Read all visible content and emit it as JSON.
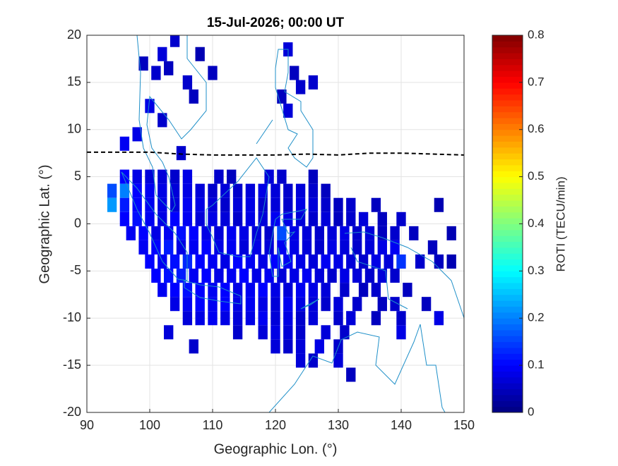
{
  "chart_data": {
    "type": "scatter",
    "title": "15-Jul-2026; 00:00 UT",
    "x_label": "Geographic Lon. (°)",
    "y_label": "Geographic Lat. (°)",
    "colorbar_label": "ROTI (TECU/min)",
    "colormap": "jet",
    "clim": [
      0,
      0.8
    ],
    "cticks": [
      0,
      0.1,
      0.2,
      0.3,
      0.4,
      0.5,
      0.6,
      0.7,
      0.8
    ],
    "xlim": [
      90,
      150
    ],
    "ylim": [
      -20,
      20
    ],
    "xticks": [
      90,
      100,
      110,
      120,
      130,
      140,
      150
    ],
    "yticks": [
      -20,
      -15,
      -10,
      -5,
      0,
      5,
      10,
      15,
      20
    ],
    "grid": true,
    "series": [
      {
        "x": [
          104,
          99,
          102,
          108,
          110,
          101,
          103,
          106,
          107,
          100,
          102,
          122,
          123,
          126,
          121,
          124,
          122,
          98,
          105,
          96,
          96,
          98,
          100,
          102,
          104,
          106,
          111,
          113,
          119,
          121,
          126,
          94,
          96,
          98,
          100,
          102,
          104,
          106,
          108,
          110,
          112,
          114,
          116,
          118,
          120,
          122,
          124,
          126,
          128,
          94,
          96,
          98,
          100,
          102,
          104,
          106,
          108,
          110,
          112,
          114,
          116,
          118,
          120,
          122,
          124,
          126,
          128,
          130,
          132,
          136,
          146,
          96,
          98,
          100,
          102,
          104,
          106,
          108,
          110,
          112,
          114,
          116,
          118,
          120,
          122,
          124,
          126,
          128,
          130,
          132,
          134,
          137,
          140,
          97,
          99,
          101,
          103,
          105,
          107,
          109,
          111,
          113,
          115,
          117,
          119,
          121,
          123,
          125,
          127,
          129,
          131,
          133,
          135,
          137,
          139,
          142,
          148,
          99,
          101,
          103,
          105,
          107,
          109,
          111,
          113,
          115,
          117,
          119,
          121,
          123,
          125,
          127,
          129,
          131,
          133,
          135,
          137,
          139,
          145,
          100,
          102,
          104,
          106,
          108,
          110,
          112,
          114,
          116,
          118,
          120,
          122,
          124,
          126,
          128,
          130,
          132,
          134,
          136,
          138,
          140,
          143,
          146,
          148,
          101,
          103,
          105,
          107,
          109,
          111,
          113,
          115,
          117,
          119,
          121,
          123,
          125,
          127,
          129,
          131,
          133,
          135,
          137,
          139,
          102,
          104,
          106,
          108,
          110,
          112,
          114,
          116,
          118,
          120,
          122,
          124,
          126,
          128,
          131,
          134,
          136,
          141,
          104,
          106,
          108,
          110,
          112,
          114,
          116,
          118,
          120,
          122,
          124,
          126,
          128,
          130,
          133,
          137,
          139,
          144,
          106,
          108,
          110,
          112,
          114,
          116,
          118,
          120,
          122,
          124,
          126,
          130,
          132,
          136,
          140,
          146,
          103,
          114,
          118,
          120,
          122,
          124,
          128,
          131,
          140,
          107,
          120,
          122,
          124,
          127,
          130,
          124,
          126,
          130,
          132
        ],
        "y": [
          19.5,
          17,
          18,
          18,
          16,
          16,
          16.5,
          15,
          13.5,
          12.5,
          11,
          18.5,
          16,
          15,
          13.5,
          14.5,
          12,
          9.5,
          7.5,
          8.5,
          5,
          5,
          5,
          5,
          5,
          5,
          5,
          5,
          5,
          5,
          5,
          3.5,
          3.5,
          3.5,
          3.5,
          3.5,
          3.5,
          3.5,
          3.5,
          3.5,
          3.5,
          3.5,
          3.5,
          3.5,
          3.5,
          3.5,
          3.5,
          3.5,
          3.5,
          2,
          2,
          2,
          2,
          2,
          2,
          2,
          2,
          2,
          2,
          2,
          2,
          2,
          2,
          2,
          2,
          2,
          2,
          2,
          2,
          2,
          2,
          0.5,
          0.5,
          0.5,
          0.5,
          0.5,
          0.5,
          0.5,
          0.5,
          0.5,
          0.5,
          0.5,
          0.5,
          0.5,
          0.5,
          0.5,
          0.5,
          0.5,
          0.5,
          0.5,
          0.5,
          0.5,
          0.5,
          -1,
          -1,
          -1,
          -1,
          -1,
          -1,
          -1,
          -1,
          -1,
          -1,
          -1,
          -1,
          -1,
          -1,
          -1,
          -1,
          -1,
          -1,
          -1,
          -1,
          -1,
          -1,
          -1,
          -1,
          -2.5,
          -2.5,
          -2.5,
          -2.5,
          -2.5,
          -2.5,
          -2.5,
          -2.5,
          -2.5,
          -2.5,
          -2.5,
          -2.5,
          -2.5,
          -2.5,
          -2.5,
          -2.5,
          -2.5,
          -2.5,
          -2.5,
          -2.5,
          -2.5,
          -2.5,
          -4,
          -4,
          -4,
          -4,
          -4,
          -4,
          -4,
          -4,
          -4,
          -4,
          -4,
          -4,
          -4,
          -4,
          -4,
          -4,
          -4,
          -4,
          -4,
          -4,
          -4,
          -4,
          -4,
          -4,
          -5.5,
          -5.5,
          -5.5,
          -5.5,
          -5.5,
          -5.5,
          -5.5,
          -5.5,
          -5.5,
          -5.5,
          -5.5,
          -5.5,
          -5.5,
          -5.5,
          -5.5,
          -5.5,
          -5.5,
          -5.5,
          -5.5,
          -5.5,
          -7,
          -7,
          -7,
          -7,
          -7,
          -7,
          -7,
          -7,
          -7,
          -7,
          -7,
          -7,
          -7,
          -7,
          -7,
          -7,
          -7,
          -7,
          -8.5,
          -8.5,
          -8.5,
          -8.5,
          -8.5,
          -8.5,
          -8.5,
          -8.5,
          -8.5,
          -8.5,
          -8.5,
          -8.5,
          -8.5,
          -8.5,
          -8.5,
          -8.5,
          -8.5,
          -8.5,
          -10,
          -10,
          -10,
          -10,
          -10,
          -10,
          -10,
          -10,
          -10,
          -10,
          -10,
          -10,
          -10,
          -10,
          -10,
          -10,
          -11.5,
          -11.5,
          -11.5,
          -11.5,
          -11.5,
          -11.5,
          -11.5,
          -11.5,
          -11.5,
          -13,
          -13,
          -13,
          -13,
          -13,
          -13,
          -14.5,
          -14.5,
          -14.5,
          -16
        ],
        "values": [
          0.06,
          0.05,
          0.07,
          0.04,
          0.05,
          0.06,
          0.05,
          0.06,
          0.05,
          0.08,
          0.06,
          0.07,
          0.05,
          0.06,
          0.05,
          0.06,
          0.07,
          0.08,
          0.06,
          0.09,
          0.1,
          0.08,
          0.07,
          0.07,
          0.06,
          0.08,
          0.06,
          0.05,
          0.07,
          0.06,
          0.05,
          0.16,
          0.2,
          0.1,
          0.09,
          0.08,
          0.07,
          0.08,
          0.07,
          0.06,
          0.07,
          0.06,
          0.07,
          0.08,
          0.07,
          0.06,
          0.07,
          0.06,
          0.05,
          0.22,
          0.12,
          0.1,
          0.09,
          0.08,
          0.07,
          0.09,
          0.08,
          0.07,
          0.06,
          0.07,
          0.08,
          0.06,
          0.07,
          0.06,
          0.08,
          0.07,
          0.06,
          0.05,
          0.06,
          0.05,
          0.04,
          0.1,
          0.11,
          0.09,
          0.08,
          0.1,
          0.09,
          0.07,
          0.08,
          0.07,
          0.06,
          0.08,
          0.07,
          0.09,
          0.08,
          0.07,
          0.06,
          0.07,
          0.05,
          0.06,
          0.07,
          0.05,
          0.06,
          0.09,
          0.1,
          0.08,
          0.09,
          0.11,
          0.1,
          0.08,
          0.07,
          0.09,
          0.08,
          0.07,
          0.06,
          0.16,
          0.08,
          0.07,
          0.06,
          0.07,
          0.08,
          0.06,
          0.07,
          0.05,
          0.06,
          0.05,
          0.04,
          0.09,
          0.1,
          0.12,
          0.08,
          0.09,
          0.1,
          0.08,
          0.09,
          0.07,
          0.08,
          0.07,
          0.09,
          0.08,
          0.07,
          0.06,
          0.08,
          0.07,
          0.06,
          0.07,
          0.08,
          0.09,
          0.05,
          0.1,
          0.09,
          0.11,
          0.13,
          0.1,
          0.09,
          0.08,
          0.1,
          0.09,
          0.08,
          0.1,
          0.09,
          0.08,
          0.07,
          0.09,
          0.08,
          0.07,
          0.06,
          0.08,
          0.07,
          0.14,
          0.06,
          0.05,
          0.04,
          0.1,
          0.11,
          0.12,
          0.09,
          0.1,
          0.08,
          0.09,
          0.1,
          0.08,
          0.09,
          0.07,
          0.08,
          0.09,
          0.07,
          0.06,
          0.08,
          0.07,
          0.06,
          0.07,
          0.06,
          0.09,
          0.1,
          0.11,
          0.1,
          0.09,
          0.1,
          0.08,
          0.09,
          0.1,
          0.08,
          0.07,
          0.09,
          0.08,
          0.07,
          0.06,
          0.05,
          0.06,
          0.05,
          0.08,
          0.09,
          0.1,
          0.09,
          0.1,
          0.08,
          0.09,
          0.08,
          0.07,
          0.09,
          0.08,
          0.07,
          0.06,
          0.07,
          0.06,
          0.05,
          0.06,
          0.05,
          0.07,
          0.08,
          0.09,
          0.08,
          0.07,
          0.08,
          0.09,
          0.07,
          0.08,
          0.06,
          0.07,
          0.06,
          0.07,
          0.05,
          0.06,
          0.08,
          0.07,
          0.06,
          0.07,
          0.08,
          0.07,
          0.06,
          0.07,
          0.06,
          0.08,
          0.06,
          0.07,
          0.06,
          0.07,
          0.08,
          0.06,
          0.07,
          0.06,
          0.07,
          0.05
        ]
      }
    ],
    "lines": [
      {
        "color": "#000000",
        "x": [
          90,
          100,
          105,
          110,
          115,
          120,
          125,
          130,
          135,
          140,
          145,
          150
        ],
        "y": [
          7.6,
          7.6,
          7.4,
          7.3,
          7.3,
          7.3,
          7.4,
          7.3,
          7.5,
          7.5,
          7.4,
          7.3
        ]
      }
    ]
  }
}
